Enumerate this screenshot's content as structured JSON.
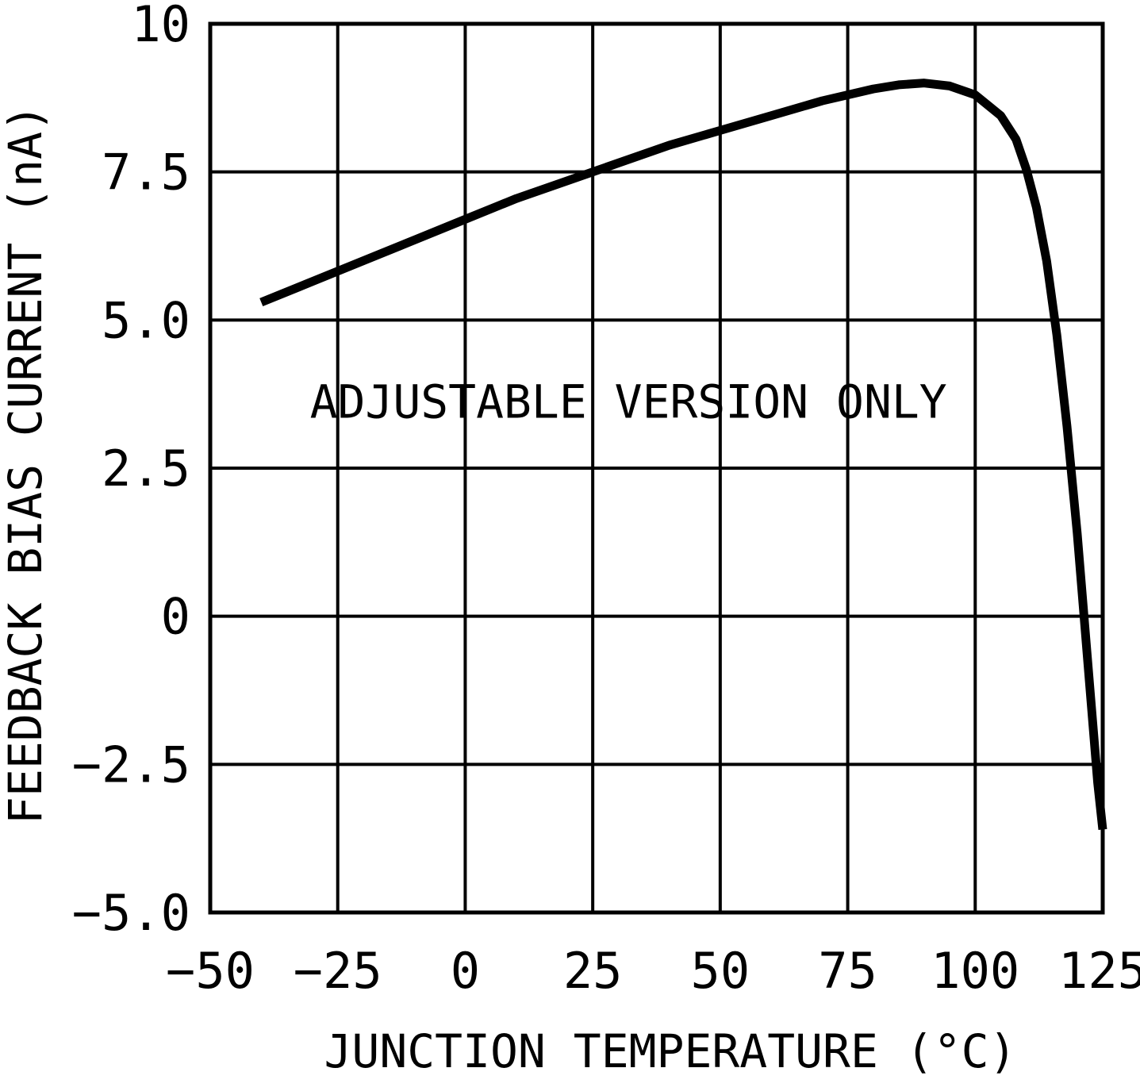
{
  "chart_data": {
    "type": "line",
    "title": "",
    "xlabel": "JUNCTION TEMPERATURE (°C)",
    "ylabel": "FEEDBACK BIAS CURRENT (nA)",
    "annotation": {
      "text": "ADJUSTABLE VERSION ONLY",
      "x": 32,
      "y": 3.35
    },
    "xlim": [
      -50,
      125
    ],
    "ylim": [
      -5,
      10
    ],
    "grid": true,
    "legend": "none",
    "xticks": {
      "values": [
        -50,
        -25,
        0,
        25,
        50,
        75,
        100,
        125
      ],
      "labels": [
        "−50",
        "−25",
        "0",
        "25",
        "50",
        "75",
        "100",
        "125"
      ]
    },
    "yticks": {
      "values": [
        10,
        7.5,
        5.0,
        2.5,
        0,
        -2.5,
        -5.0
      ],
      "labels": [
        "10",
        "7.5",
        "5.0",
        "2.5",
        "0",
        "−2.5",
        "−5.0"
      ]
    },
    "series": [
      {
        "name": "feedback-bias-current",
        "points": [
          [
            -40,
            5.3
          ],
          [
            -30,
            5.65
          ],
          [
            -20,
            6.0
          ],
          [
            -10,
            6.35
          ],
          [
            0,
            6.7
          ],
          [
            10,
            7.05
          ],
          [
            25,
            7.5
          ],
          [
            40,
            7.95
          ],
          [
            50,
            8.2
          ],
          [
            60,
            8.45
          ],
          [
            70,
            8.7
          ],
          [
            80,
            8.9
          ],
          [
            85,
            8.97
          ],
          [
            90,
            9.0
          ],
          [
            95,
            8.95
          ],
          [
            100,
            8.8
          ],
          [
            105,
            8.45
          ],
          [
            108,
            8.05
          ],
          [
            110,
            7.55
          ],
          [
            112,
            6.9
          ],
          [
            114,
            6.0
          ],
          [
            116,
            4.75
          ],
          [
            118,
            3.2
          ],
          [
            120,
            1.4
          ],
          [
            122,
            -0.7
          ],
          [
            124,
            -2.8
          ],
          [
            125,
            -3.6
          ]
        ]
      }
    ]
  }
}
